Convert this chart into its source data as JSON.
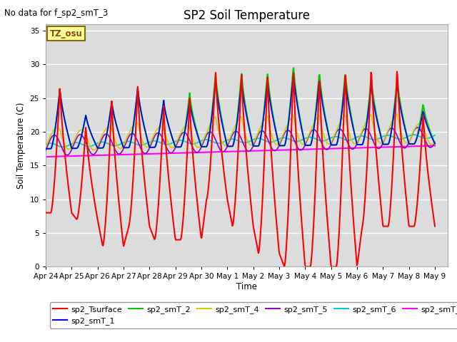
{
  "title": "SP2 Soil Temperature",
  "ylabel": "Soil Temperature (C)",
  "xlabel": "Time",
  "no_data_text": "No data for f_sp2_smT_3",
  "tz_label": "TZ_osu",
  "ylim": [
    0,
    36
  ],
  "yticks": [
    0,
    5,
    10,
    15,
    20,
    25,
    30,
    35
  ],
  "x_tick_labels": [
    "Apr 24",
    "Apr 25",
    "Apr 26",
    "Apr 27",
    "Apr 28",
    "Apr 29",
    "Apr 30",
    "May 1",
    "May 2",
    "May 3",
    "May 4",
    "May 5",
    "May 6",
    "May 7",
    "May 8",
    "May 9"
  ],
  "colors": {
    "sp2_Tsurface": "#FF0000",
    "sp2_smT_1": "#0000FF",
    "sp2_smT_2": "#00CC00",
    "sp2_smT_4": "#CCCC00",
    "sp2_smT_5": "#9900CC",
    "sp2_smT_6": "#00CCCC",
    "sp2_smT_7": "#FF00FF"
  },
  "plot_bg": "#DCDCDC"
}
